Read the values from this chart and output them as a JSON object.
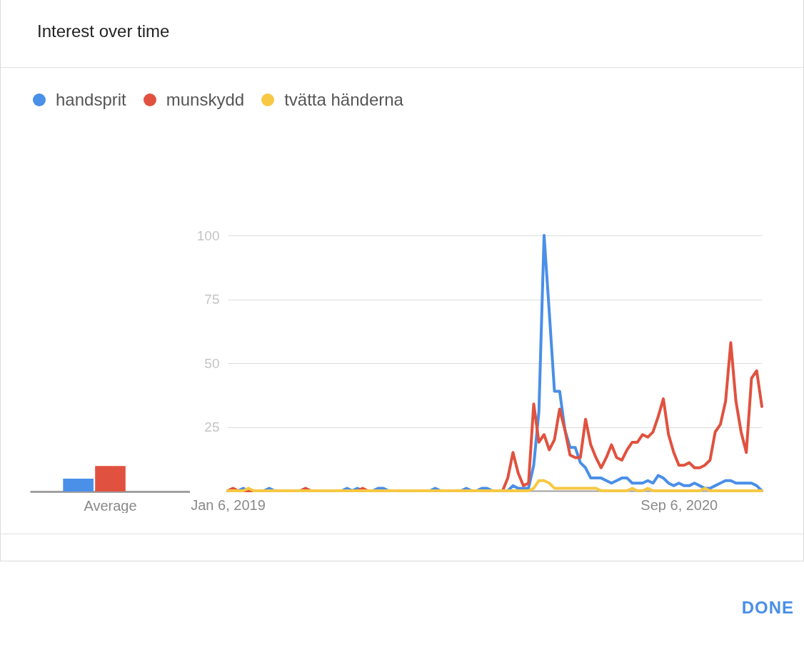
{
  "chart_data": [
    {
      "type": "bar",
      "title": "Interest over time",
      "categories": [
        "Average"
      ],
      "ylim": [
        0,
        100
      ],
      "tick_labels": "x",
      "series": [
        {
          "color": "#4a8fe8",
          "values": [
            5
          ]
        },
        {
          "color": "#e0523f",
          "values": [
            10
          ]
        },
        {
          "color": "#f7c843",
          "values": [
            0
          ]
        }
      ]
    },
    {
      "type": "line",
      "legend": "top",
      "grid": "y",
      "line_style": "solid",
      "marker": "none",
      "annotations": [
        "DONE"
      ],
      "x": [
        "2019-01-06",
        "2019-01-13",
        "2019-01-20",
        "2019-01-27",
        "2019-02-03",
        "2019-02-10",
        "2019-02-17",
        "2019-02-24",
        "2019-03-03",
        "2019-03-10",
        "2019-03-17",
        "2019-03-24",
        "2019-03-31",
        "2019-04-07",
        "2019-04-14",
        "2019-04-21",
        "2019-04-28",
        "2019-05-05",
        "2019-05-12",
        "2019-05-19",
        "2019-05-26",
        "2019-06-02",
        "2019-06-09",
        "2019-06-16",
        "2019-06-23",
        "2019-06-30",
        "2019-07-07",
        "2019-07-14",
        "2019-07-21",
        "2019-07-28",
        "2019-08-04",
        "2019-08-11",
        "2019-08-18",
        "2019-08-25",
        "2019-09-01",
        "2019-09-08",
        "2019-09-15",
        "2019-09-22",
        "2019-09-29",
        "2019-10-06",
        "2019-10-13",
        "2019-10-20",
        "2019-10-27",
        "2019-11-03",
        "2019-11-10",
        "2019-11-17",
        "2019-11-24",
        "2019-12-01",
        "2019-12-08",
        "2019-12-15",
        "2019-12-22",
        "2019-12-29",
        "2020-01-05",
        "2020-01-12",
        "2020-01-19",
        "2020-01-26",
        "2020-02-02",
        "2020-02-09",
        "2020-02-16",
        "2020-02-23",
        "2020-03-01",
        "2020-03-08",
        "2020-03-15",
        "2020-03-22",
        "2020-03-29",
        "2020-04-05",
        "2020-04-12",
        "2020-04-19",
        "2020-04-26",
        "2020-05-03",
        "2020-05-10",
        "2020-05-17",
        "2020-05-24",
        "2020-05-31",
        "2020-06-07",
        "2020-06-14",
        "2020-06-21",
        "2020-06-28",
        "2020-07-05",
        "2020-07-12",
        "2020-07-19",
        "2020-07-26",
        "2020-08-02",
        "2020-08-09",
        "2020-08-16",
        "2020-08-23",
        "2020-08-30",
        "2020-09-06",
        "2020-09-13",
        "2020-09-20",
        "2020-09-27",
        "2020-10-04",
        "2020-10-11",
        "2020-10-18",
        "2020-10-25",
        "2020-11-01",
        "2020-11-08",
        "2020-11-15",
        "2020-11-22",
        "2020-11-29",
        "2020-12-06",
        "2020-12-13",
        "2020-12-20",
        "2020-12-27"
      ],
      "xlim": [
        "2019-01-06",
        "2020-12-27"
      ],
      "xticks": [
        {
          "value": "2019-01-06",
          "label": "Jan 6, 2019"
        },
        {
          "value": "2020-09-06",
          "label": "Sep 6, 2020"
        }
      ],
      "ylim": [
        0,
        100
      ],
      "yticks": [
        25,
        50,
        75,
        100
      ],
      "series": [
        {
          "name": "handsprit",
          "color": "#4a8fe8",
          "values": [
            0,
            0,
            0,
            1,
            0,
            0,
            0,
            0,
            1,
            0,
            0,
            0,
            0,
            0,
            0,
            0,
            0,
            0,
            0,
            0,
            0,
            0,
            0,
            1,
            0,
            1,
            0,
            0,
            0,
            1,
            1,
            0,
            0,
            0,
            0,
            0,
            0,
            0,
            0,
            0,
            1,
            0,
            0,
            0,
            0,
            0,
            1,
            0,
            0,
            1,
            1,
            0,
            0,
            0,
            0,
            2,
            1,
            1,
            1,
            10,
            31,
            100,
            70,
            39,
            39,
            24,
            17,
            17,
            11,
            9,
            5,
            5,
            5,
            4,
            3,
            4,
            5,
            5,
            3,
            3,
            3,
            4,
            3,
            6,
            5,
            3,
            2,
            3,
            2,
            2,
            3,
            2,
            1,
            1,
            2,
            3,
            4,
            4,
            3,
            3,
            3,
            3,
            2,
            0
          ]
        },
        {
          "name": "munskydd",
          "color": "#e0523f",
          "values": [
            0,
            1,
            0,
            0,
            0,
            0,
            0,
            0,
            0,
            0,
            0,
            0,
            0,
            0,
            0,
            1,
            0,
            0,
            0,
            0,
            0,
            0,
            0,
            0,
            0,
            0,
            1,
            0,
            0,
            0,
            0,
            0,
            0,
            0,
            0,
            0,
            0,
            0,
            0,
            0,
            0,
            0,
            0,
            0,
            0,
            0,
            0,
            0,
            0,
            0,
            0,
            0,
            0,
            0,
            5,
            15,
            7,
            2,
            3,
            34,
            19,
            22,
            16,
            20,
            32,
            24,
            14,
            13,
            13,
            28,
            18,
            13,
            9,
            13,
            18,
            13,
            12,
            16,
            19,
            19,
            22,
            21,
            23,
            29,
            36,
            22,
            15,
            10,
            10,
            11,
            9,
            9,
            10,
            12,
            23,
            26,
            35,
            58,
            35,
            23,
            15,
            44,
            47,
            33
          ]
        },
        {
          "name": "tvätta händerna",
          "color": "#f7c843",
          "values": [
            0,
            0,
            0,
            0,
            1,
            0,
            0,
            0,
            0,
            0,
            0,
            0,
            0,
            0,
            0,
            0,
            0,
            0,
            0,
            0,
            0,
            0,
            0,
            0,
            0,
            0,
            0,
            0,
            0,
            0,
            0,
            0,
            0,
            0,
            0,
            0,
            0,
            0,
            0,
            0,
            0,
            0,
            0,
            0,
            0,
            0,
            0,
            0,
            0,
            0,
            0,
            0,
            0,
            0,
            0,
            0,
            0,
            0,
            0,
            1,
            4,
            4,
            3,
            1,
            1,
            1,
            1,
            1,
            1,
            1,
            1,
            1,
            0,
            0,
            0,
            0,
            0,
            0,
            1,
            0,
            0,
            1,
            0,
            0,
            0,
            0,
            0,
            0,
            0,
            0,
            0,
            0,
            1,
            0,
            0,
            0,
            0,
            0,
            0,
            0,
            0,
            0,
            0,
            0
          ]
        }
      ]
    }
  ]
}
